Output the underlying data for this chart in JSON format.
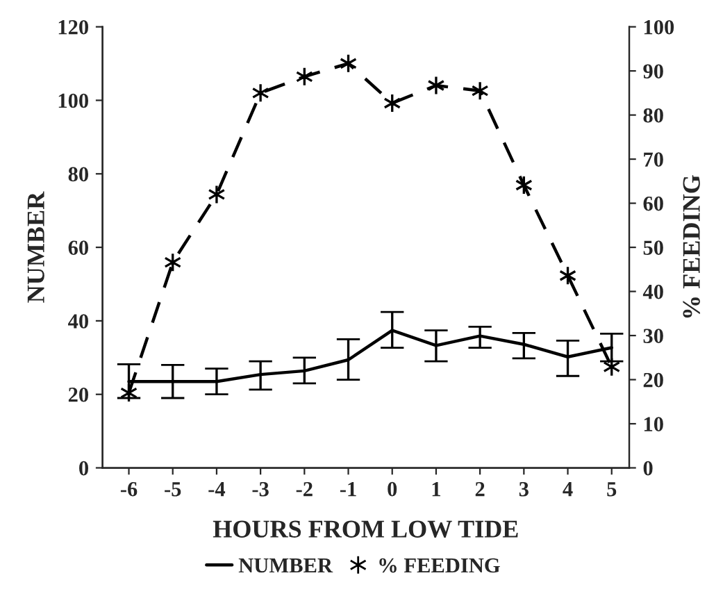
{
  "chart_data": {
    "type": "line",
    "xlabel": "HOURS FROM LOW TIDE",
    "ylabel": "NUMBER",
    "y2label": "% FEEDING",
    "x": [
      -6,
      -5,
      -4,
      -3,
      -2,
      -1,
      0,
      1,
      2,
      3,
      4,
      5
    ],
    "xlim": [
      -6.6,
      5.4
    ],
    "xticks": [
      -6,
      -5,
      -4,
      -3,
      -2,
      -1,
      0,
      1,
      2,
      3,
      4,
      5
    ],
    "ylim": [
      0,
      120
    ],
    "yticks": [
      0,
      20,
      40,
      60,
      80,
      100,
      120
    ],
    "y2lim": [
      0,
      100
    ],
    "y2ticks": [
      0,
      10,
      20,
      30,
      40,
      50,
      60,
      70,
      80,
      90,
      100
    ],
    "grid": false,
    "legend": "bottom",
    "series": [
      {
        "name": "NUMBER",
        "color": "#000000",
        "marker": "none",
        "line_style": "solid",
        "values": [
          23.5,
          23.5,
          23.5,
          25.4,
          26.4,
          29.4,
          37.4,
          33.3,
          35.9,
          33.6,
          30.2,
          32.7
        ],
        "errors": [
          [
            19,
            28.2
          ],
          [
            19,
            28
          ],
          [
            20,
            27
          ],
          [
            21.3,
            29
          ],
          [
            23,
            30
          ],
          [
            24,
            35
          ],
          [
            32.7,
            42.4
          ],
          [
            29,
            37.4
          ],
          [
            32.7,
            38.4
          ],
          [
            29.8,
            36.7
          ],
          [
            25,
            34.6
          ],
          [
            29,
            36.5
          ]
        ]
      },
      {
        "name": "% FEEDING",
        "color": "#000000",
        "axis": "y2",
        "marker": "cross",
        "line_style": "dashed",
        "values": [
          17.0,
          46.6,
          62.0,
          85.0,
          88.7,
          91.7,
          82.7,
          86.7,
          85.5,
          64.1,
          43.6,
          22.9
        ]
      }
    ]
  }
}
